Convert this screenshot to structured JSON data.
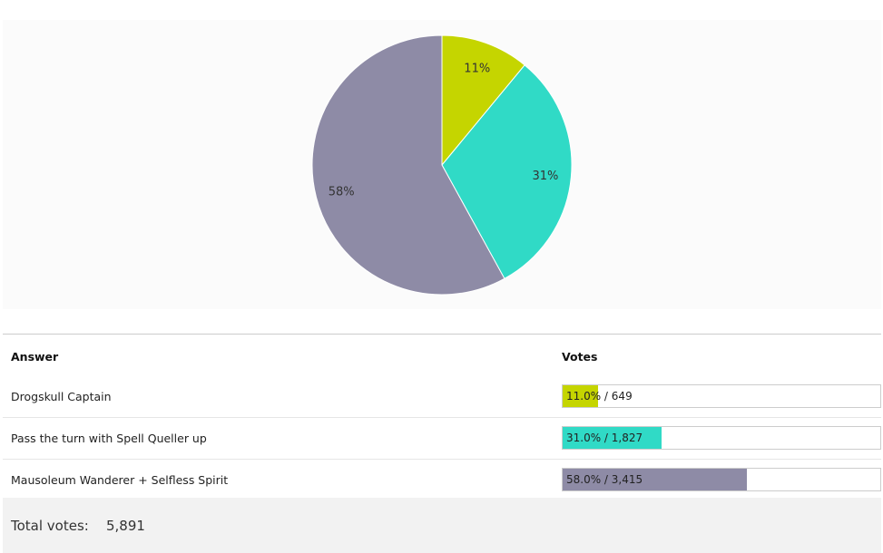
{
  "chart_data": {
    "type": "pie",
    "slices": [
      {
        "label": "11%",
        "value": 11.0,
        "color": "#c5d500"
      },
      {
        "label": "31%",
        "value": 31.0,
        "color": "#30dac6"
      },
      {
        "label": "58%",
        "value": 58.0,
        "color": "#8e8ba6"
      }
    ]
  },
  "table": {
    "header_answer": "Answer",
    "header_votes": "Votes",
    "rows": [
      {
        "answer": "Drogskull Captain",
        "percent": 11.0,
        "votes_text": "11.0% / 649",
        "color": "#c5d500"
      },
      {
        "answer": "Pass the turn with Spell Queller up",
        "percent": 31.0,
        "votes_text": "31.0% / 1,827",
        "color": "#30dac6"
      },
      {
        "answer": "Mausoleum Wanderer + Selfless Spirit",
        "percent": 58.0,
        "votes_text": "58.0% / 3,415",
        "color": "#8e8ba6"
      }
    ]
  },
  "footer": {
    "total_label": "Total votes:",
    "total_value": "5,891"
  }
}
